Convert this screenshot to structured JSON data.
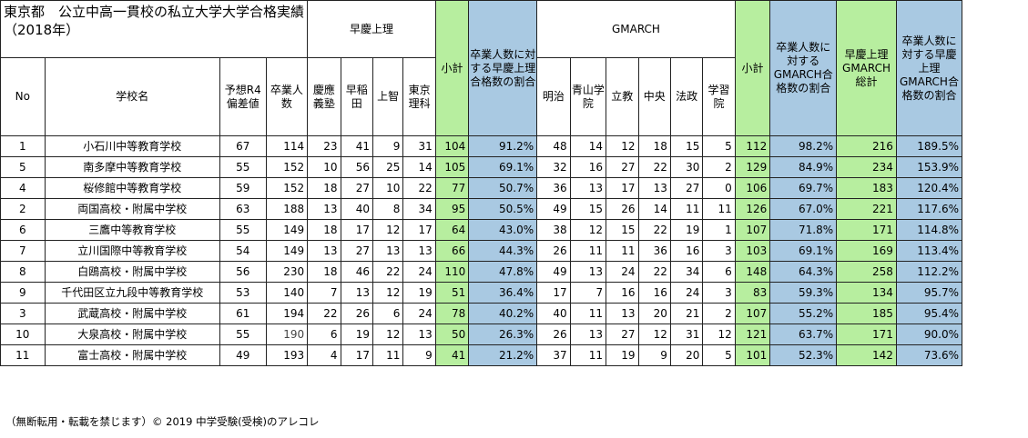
{
  "title": "東京都　公立中高一貫校の私立大学大学合格実績（2018年）",
  "headers": {
    "soukei_group": "早慶上理",
    "gmarch_group": "GMARCH",
    "no": "No",
    "school": "学校名",
    "hensachi": "予想R4偏差値",
    "grads": "卒業人数",
    "keio": "慶應義塾",
    "waseda": "早稲田",
    "sophia": "上智",
    "tus": "東京理科",
    "subtotal1": "小計",
    "ratio1": "卒業人数に対する早慶上理合格数の割合",
    "meiji": "明治",
    "aoyama": "青山学院",
    "rikkyo": "立教",
    "chuo": "中央",
    "hosei": "法政",
    "gakushuin": "学習院",
    "subtotal2": "小計",
    "ratio2": "卒業人数に対するGMARCH合格数の割合",
    "total": "早慶上理GMARCH総計",
    "ratio3": "卒業人数に対する早慶上理GMARCH合格数の割合"
  },
  "rows": [
    {
      "no": "1",
      "school": "小石川中等教育学校",
      "hensachi": "67",
      "grads": "114",
      "keio": "23",
      "waseda": "41",
      "sophia": "9",
      "tus": "31",
      "sub1": "104",
      "ratio1": "91.2%",
      "meiji": "48",
      "aoyama": "14",
      "rikkyo": "12",
      "chuo": "18",
      "hosei": "15",
      "gakushuin": "5",
      "sub2": "112",
      "ratio2": "98.2%",
      "total": "216",
      "ratio3": "189.5%"
    },
    {
      "no": "5",
      "school": "南多摩中等教育学校",
      "hensachi": "55",
      "grads": "152",
      "keio": "10",
      "waseda": "56",
      "sophia": "25",
      "tus": "14",
      "sub1": "105",
      "ratio1": "69.1%",
      "meiji": "32",
      "aoyama": "16",
      "rikkyo": "27",
      "chuo": "22",
      "hosei": "30",
      "gakushuin": "2",
      "sub2": "129",
      "ratio2": "84.9%",
      "total": "234",
      "ratio3": "153.9%"
    },
    {
      "no": "4",
      "school": "桜修館中等教育学校",
      "hensachi": "59",
      "grads": "152",
      "keio": "18",
      "waseda": "27",
      "sophia": "10",
      "tus": "22",
      "sub1": "77",
      "ratio1": "50.7%",
      "meiji": "36",
      "aoyama": "13",
      "rikkyo": "17",
      "chuo": "13",
      "hosei": "27",
      "gakushuin": "0",
      "sub2": "106",
      "ratio2": "69.7%",
      "total": "183",
      "ratio3": "120.4%"
    },
    {
      "no": "2",
      "school": "両国高校・附属中学校",
      "hensachi": "63",
      "grads": "188",
      "keio": "13",
      "waseda": "40",
      "sophia": "8",
      "tus": "34",
      "sub1": "95",
      "ratio1": "50.5%",
      "meiji": "49",
      "aoyama": "15",
      "rikkyo": "26",
      "chuo": "14",
      "hosei": "11",
      "gakushuin": "11",
      "sub2": "126",
      "ratio2": "67.0%",
      "total": "221",
      "ratio3": "117.6%"
    },
    {
      "no": "6",
      "school": "三鷹中等教育学校",
      "hensachi": "55",
      "grads": "149",
      "keio": "18",
      "waseda": "17",
      "sophia": "12",
      "tus": "17",
      "sub1": "64",
      "ratio1": "43.0%",
      "meiji": "38",
      "aoyama": "12",
      "rikkyo": "15",
      "chuo": "22",
      "hosei": "19",
      "gakushuin": "1",
      "sub2": "107",
      "ratio2": "71.8%",
      "total": "171",
      "ratio3": "114.8%"
    },
    {
      "no": "7",
      "school": "立川国際中等教育学校",
      "hensachi": "54",
      "grads": "149",
      "keio": "13",
      "waseda": "27",
      "sophia": "13",
      "tus": "13",
      "sub1": "66",
      "ratio1": "44.3%",
      "meiji": "26",
      "aoyama": "11",
      "rikkyo": "11",
      "chuo": "36",
      "hosei": "16",
      "gakushuin": "3",
      "sub2": "103",
      "ratio2": "69.1%",
      "total": "169",
      "ratio3": "113.4%"
    },
    {
      "no": "8",
      "school": "白鴎高校・附属中学校",
      "hensachi": "56",
      "grads": "230",
      "keio": "18",
      "waseda": "46",
      "sophia": "22",
      "tus": "24",
      "sub1": "110",
      "ratio1": "47.8%",
      "meiji": "49",
      "aoyama": "13",
      "rikkyo": "24",
      "chuo": "22",
      "hosei": "34",
      "gakushuin": "6",
      "sub2": "148",
      "ratio2": "64.3%",
      "total": "258",
      "ratio3": "112.2%"
    },
    {
      "no": "9",
      "school": "千代田区立九段中等教育学校",
      "hensachi": "53",
      "grads": "140",
      "keio": "7",
      "waseda": "13",
      "sophia": "12",
      "tus": "19",
      "sub1": "51",
      "ratio1": "36.4%",
      "meiji": "17",
      "aoyama": "7",
      "rikkyo": "16",
      "chuo": "16",
      "hosei": "24",
      "gakushuin": "3",
      "sub2": "83",
      "ratio2": "59.3%",
      "total": "134",
      "ratio3": "95.7%"
    },
    {
      "no": "3",
      "school": "武蔵高校・附属中学校",
      "hensachi": "61",
      "grads": "194",
      "keio": "22",
      "waseda": "26",
      "sophia": "6",
      "tus": "24",
      "sub1": "78",
      "ratio1": "40.2%",
      "meiji": "40",
      "aoyama": "11",
      "rikkyo": "13",
      "chuo": "20",
      "hosei": "21",
      "gakushuin": "2",
      "sub2": "107",
      "ratio2": "55.2%",
      "total": "185",
      "ratio3": "95.4%"
    },
    {
      "no": "10",
      "school": "大泉高校・附属中学校",
      "hensachi": "55",
      "grads": "190",
      "keio": "6",
      "waseda": "19",
      "sophia": "12",
      "tus": "13",
      "sub1": "50",
      "ratio1": "26.3%",
      "meiji": "26",
      "aoyama": "13",
      "rikkyo": "27",
      "chuo": "12",
      "hosei": "31",
      "gakushuin": "12",
      "sub2": "121",
      "ratio2": "63.7%",
      "total": "171",
      "ratio3": "90.0%"
    },
    {
      "no": "11",
      "school": "富士高校・附属中学校",
      "hensachi": "49",
      "grads": "193",
      "keio": "4",
      "waseda": "17",
      "sophia": "11",
      "tus": "9",
      "sub1": "41",
      "ratio1": "21.2%",
      "meiji": "37",
      "aoyama": "11",
      "rikkyo": "19",
      "chuo": "9",
      "hosei": "20",
      "gakushuin": "5",
      "sub2": "101",
      "ratio2": "52.3%",
      "total": "142",
      "ratio3": "73.6%"
    }
  ],
  "footer": "（無断転用・転載を禁じます）© 2019 中学受験(受検)のアレコレ",
  "colors": {
    "subtotal_green": "#b7ee9f",
    "ratio_blue": "#a9c9e2"
  }
}
